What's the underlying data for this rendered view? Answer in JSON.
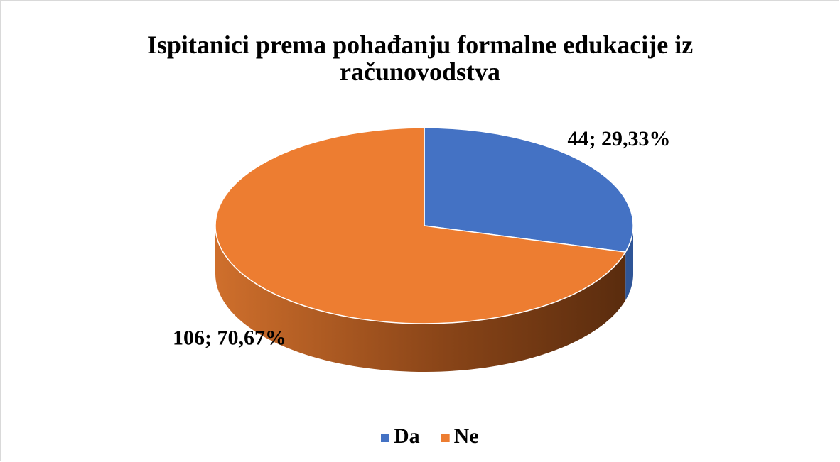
{
  "chart_data": {
    "type": "pie",
    "title": "Ispitanici prema pohađanju formalne edukacije iz računovodstva",
    "categories": [
      "Da",
      "Ne"
    ],
    "values": [
      44,
      106
    ],
    "value_labels": [
      "44; 29,33%",
      "106; 70,67%"
    ],
    "colors": [
      "#4472c4",
      "#ed7d31"
    ],
    "legend": "bottom"
  }
}
